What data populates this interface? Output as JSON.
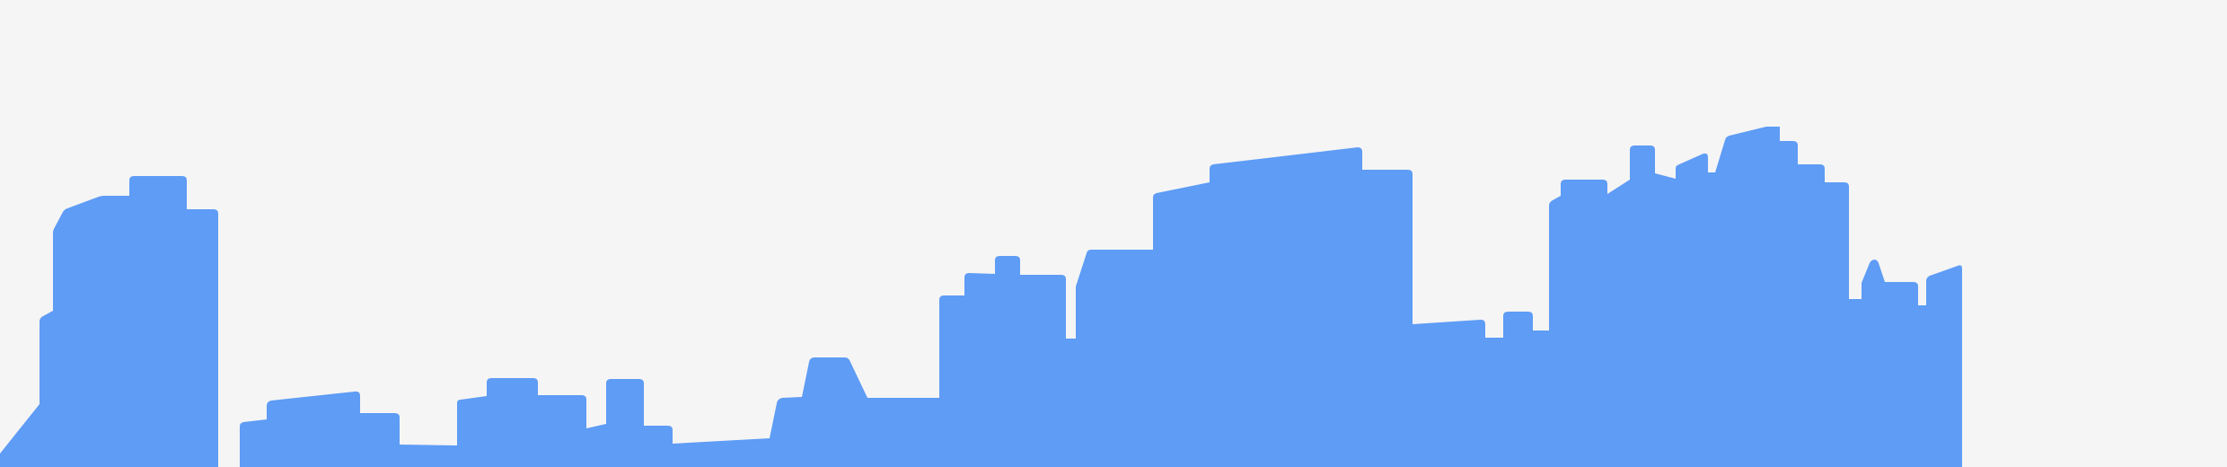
{
  "colors": {
    "background": "#f5f5f5",
    "skyline": "#5e9cf5"
  }
}
